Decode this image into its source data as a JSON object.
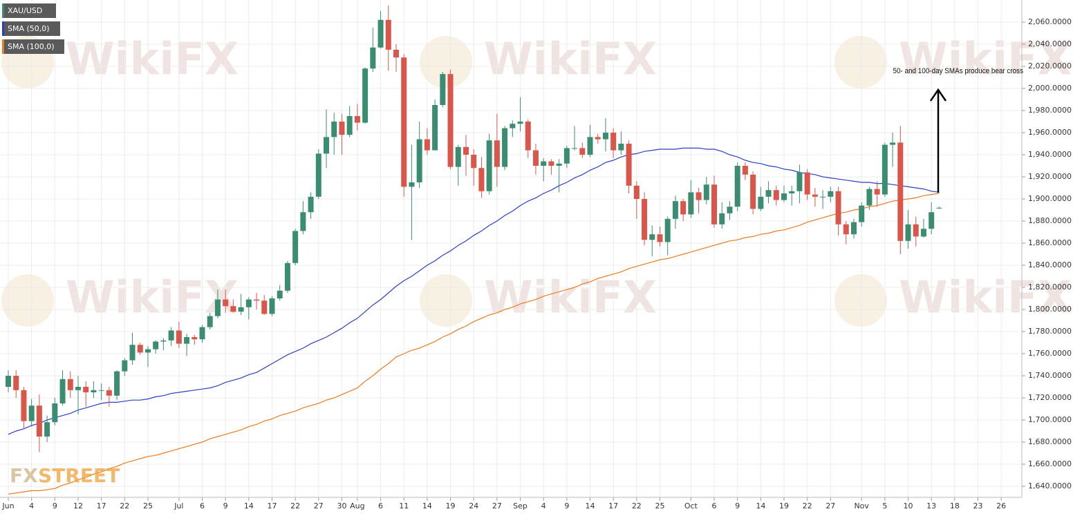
{
  "chart_data": {
    "type": "candlestick",
    "annotation": "50- and 100-day SMAs produce bear cross",
    "watermark": "WikiFX",
    "logo": {
      "fx": "FX",
      "street": "STREET"
    },
    "categories": [
      "Jun",
      null,
      null,
      "4",
      null,
      null,
      "9",
      null,
      null,
      "12",
      null,
      null,
      "17",
      null,
      null,
      "22",
      null,
      null,
      "25",
      null,
      null,
      null,
      "Jul",
      null,
      null,
      "6",
      null,
      null,
      "9",
      null,
      null,
      "14",
      null,
      null,
      "17",
      null,
      null,
      "22",
      null,
      null,
      "27",
      null,
      null,
      "30",
      null,
      "Aug",
      null,
      null,
      "6",
      null,
      null,
      "11",
      null,
      null,
      "14",
      null,
      null,
      "19",
      null,
      null,
      "24",
      null,
      null,
      "27",
      null,
      null,
      "Sep",
      null,
      null,
      "4",
      null,
      null,
      "9",
      null,
      null,
      "14",
      null,
      null,
      "17",
      null,
      null,
      "22",
      null,
      null,
      "25",
      null,
      null,
      null,
      "Oct",
      null,
      null,
      "6",
      null,
      null,
      "9",
      null,
      null,
      "14",
      null,
      null,
      "19",
      null,
      null,
      "22",
      null,
      null,
      "27",
      null,
      null,
      null,
      "Nov",
      null,
      null,
      "5",
      null,
      null,
      "10",
      null,
      null,
      "13",
      null,
      null,
      "18",
      null,
      null,
      "23",
      null,
      null,
      "26",
      null
    ],
    "ylim": [
      1630,
      2080
    ],
    "yticks": [
      {
        "value": 1640,
        "label": "1,640.0000"
      },
      {
        "value": 1660,
        "label": "1,660.0000"
      },
      {
        "value": 1680,
        "label": "1,680.0000"
      },
      {
        "value": 1700,
        "label": "1,700.0000"
      },
      {
        "value": 1720,
        "label": "1,720.0000"
      },
      {
        "value": 1740,
        "label": "1,740.0000"
      },
      {
        "value": 1760,
        "label": "1,760.0000"
      },
      {
        "value": 1780,
        "label": "1,780.0000"
      },
      {
        "value": 1800,
        "label": "1,800.0000"
      },
      {
        "value": 1820,
        "label": "1,820.0000"
      },
      {
        "value": 1840,
        "label": "1,840.0000"
      },
      {
        "value": 1860,
        "label": "1,860.0000"
      },
      {
        "value": 1880,
        "label": "1,880.0000"
      },
      {
        "value": 1900,
        "label": "1,900.0000"
      },
      {
        "value": 1920,
        "label": "1,920.0000"
      },
      {
        "value": 1940,
        "label": "1,940.0000"
      },
      {
        "value": 1960,
        "label": "1,960.0000"
      },
      {
        "value": 1980,
        "label": "1,980.0000"
      },
      {
        "value": 2000,
        "label": "2,000.0000"
      },
      {
        "value": 2020,
        "label": "2,020.0000"
      },
      {
        "value": 2040,
        "label": "2,040.0000"
      },
      {
        "value": 2060,
        "label": "2,060.0000"
      }
    ],
    "grid": true,
    "legend": "top-left",
    "series": [
      {
        "name": "XAU/USD",
        "type": "candlestick",
        "color": "#3b8d72",
        "up_color": "#3b8d72",
        "down_color": "#d9574a",
        "open": [
          1730,
          1740,
          1727,
          1699,
          1713,
          1685,
          1698,
          1715,
          1737,
          1727,
          1730,
          1725,
          1727,
          1727,
          1722,
          1744,
          1754,
          1768,
          1761,
          1764,
          1771,
          1772,
          1781,
          1769,
          1775,
          1773,
          1784,
          1794,
          1809,
          1803,
          1798,
          1802,
          1809,
          1808,
          1796,
          1810,
          1817,
          1842,
          1871,
          1888,
          1902,
          1941,
          1956,
          1970,
          1958,
          1975,
          1969,
          2018,
          2037,
          2062,
          2035,
          2028,
          1911,
          1915,
          1954,
          1944,
          1985,
          2013,
          1929,
          1947,
          1940,
          1928,
          1907,
          1953,
          1929,
          1964,
          1968,
          1970,
          1944,
          1930,
          1934,
          1930,
          1932,
          1946,
          1946,
          1940,
          1956,
          1954,
          1960,
          1944,
          1950,
          1912,
          1900,
          1863,
          1868,
          1861,
          1882,
          1898,
          1886,
          1906,
          1899,
          1913,
          1877,
          1887,
          1893,
          1930,
          1922,
          1891,
          1902,
          1908,
          1899,
          1905,
          1907,
          1924,
          1904,
          1902,
          1902,
          1907,
          1877,
          1868,
          1879,
          1894,
          1909,
          1904,
          1949,
          1951,
          1862,
          1877,
          1866,
          1873,
          1892,
          null,
          null,
          null,
          null,
          null,
          null,
          null,
          null,
          null
        ],
        "high": [
          1745,
          1745,
          1730,
          1719,
          1723,
          1704,
          1720,
          1745,
          1744,
          1740,
          1735,
          1735,
          1733,
          1730,
          1745,
          1756,
          1779,
          1770,
          1767,
          1772,
          1774,
          1784,
          1789,
          1778,
          1777,
          1786,
          1797,
          1818,
          1818,
          1809,
          1814,
          1811,
          1815,
          1813,
          1812,
          1822,
          1844,
          1873,
          1898,
          1906,
          1945,
          1981,
          1978,
          1977,
          1984,
          1986,
          2019,
          2055,
          2070,
          2075,
          2040,
          2031,
          1949,
          1970,
          1964,
          1990,
          2015,
          2017,
          1949,
          1958,
          1945,
          1938,
          1959,
          1977,
          1966,
          1971,
          1992,
          1972,
          1950,
          1937,
          1936,
          1936,
          1948,
          1966,
          1951,
          1967,
          1959,
          1973,
          1964,
          1961,
          1953,
          1916,
          1906,
          1876,
          1875,
          1884,
          1903,
          1900,
          1917,
          1910,
          1920,
          1921,
          1897,
          1898,
          1933,
          1933,
          1925,
          1911,
          1916,
          1912,
          1912,
          1912,
          1931,
          1927,
          1910,
          1908,
          1911,
          1911,
          1880,
          1882,
          1897,
          1911,
          1916,
          1951,
          1960,
          1966,
          1890,
          1884,
          1882,
          1897,
          1893,
          null,
          null,
          null,
          null,
          null,
          null,
          null,
          null,
          null
        ],
        "low": [
          1725,
          1720,
          1692,
          1694,
          1671,
          1680,
          1695,
          1713,
          1720,
          1705,
          1712,
          1720,
          1718,
          1712,
          1718,
          1740,
          1750,
          1759,
          1748,
          1760,
          1763,
          1767,
          1765,
          1758,
          1768,
          1770,
          1782,
          1792,
          1797,
          1797,
          1795,
          1791,
          1800,
          1795,
          1794,
          1808,
          1815,
          1840,
          1868,
          1882,
          1900,
          1928,
          1940,
          1940,
          1956,
          1962,
          1968,
          2015,
          2036,
          2016,
          2015,
          1902,
          1863,
          1910,
          1940,
          1944,
          1983,
          1927,
          1912,
          1921,
          1912,
          1901,
          1904,
          1911,
          1926,
          1956,
          1961,
          1937,
          1922,
          1916,
          1922,
          1906,
          1928,
          1944,
          1937,
          1938,
          1950,
          1943,
          1937,
          1940,
          1905,
          1882,
          1858,
          1848,
          1857,
          1849,
          1873,
          1880,
          1883,
          1887,
          1895,
          1874,
          1873,
          1881,
          1889,
          1917,
          1886,
          1889,
          1896,
          1894,
          1897,
          1894,
          1896,
          1899,
          1893,
          1891,
          1897,
          1867,
          1859,
          1864,
          1875,
          1890,
          1893,
          1902,
          1929,
          1850,
          1855,
          1857,
          1865,
          1868,
          1891,
          null,
          null,
          null,
          null,
          null,
          null,
          null,
          null,
          null
        ],
        "close": [
          1740,
          1727,
          1699,
          1713,
          1685,
          1698,
          1715,
          1737,
          1727,
          1730,
          1725,
          1727,
          1727,
          1722,
          1744,
          1754,
          1768,
          1761,
          1764,
          1771,
          1772,
          1781,
          1769,
          1775,
          1773,
          1784,
          1794,
          1809,
          1803,
          1798,
          1802,
          1809,
          1808,
          1796,
          1810,
          1817,
          1842,
          1871,
          1888,
          1902,
          1941,
          1956,
          1970,
          1958,
          1975,
          1969,
          2018,
          2037,
          2062,
          2035,
          2028,
          1911,
          1915,
          1954,
          1944,
          1985,
          2013,
          1929,
          1947,
          1940,
          1928,
          1907,
          1953,
          1929,
          1964,
          1968,
          1970,
          1944,
          1930,
          1934,
          1930,
          1932,
          1946,
          1946,
          1940,
          1956,
          1954,
          1960,
          1944,
          1950,
          1912,
          1900,
          1863,
          1868,
          1861,
          1882,
          1898,
          1886,
          1906,
          1899,
          1913,
          1877,
          1887,
          1893,
          1930,
          1922,
          1891,
          1902,
          1908,
          1899,
          1905,
          1907,
          1924,
          1904,
          1902,
          1902,
          1907,
          1877,
          1868,
          1879,
          1894,
          1909,
          1904,
          1949,
          1951,
          1862,
          1877,
          1866,
          1873,
          1888,
          1892,
          null,
          null,
          null,
          null,
          null,
          null,
          null,
          null,
          null
        ]
      },
      {
        "name": "SMA (50,0)",
        "type": "line",
        "color": "#2a3fc9",
        "values": [
          1687,
          1690,
          1692,
          1695,
          1697,
          1700,
          1702,
          1704,
          1706,
          1709,
          1711,
          1713,
          1715,
          1716,
          1716,
          1717,
          1718,
          1718,
          1719,
          1721,
          1722,
          1724,
          1725,
          1726,
          1727,
          1728,
          1729,
          1731,
          1734,
          1736,
          1738,
          1741,
          1743,
          1747,
          1751,
          1755,
          1759,
          1762,
          1765,
          1769,
          1772,
          1775,
          1779,
          1783,
          1788,
          1792,
          1798,
          1804,
          1809,
          1815,
          1821,
          1826,
          1830,
          1835,
          1840,
          1844,
          1849,
          1853,
          1858,
          1862,
          1867,
          1871,
          1876,
          1880,
          1885,
          1889,
          1894,
          1898,
          1901,
          1905,
          1908,
          1912,
          1915,
          1919,
          1922,
          1926,
          1929,
          1933,
          1935,
          1938,
          1940,
          1941,
          1943,
          1944,
          1945,
          1945,
          1945,
          1946,
          1946,
          1946,
          1945,
          1945,
          1943,
          1940,
          1938,
          1935,
          1933,
          1932,
          1930,
          1929,
          1927,
          1926,
          1924,
          1923,
          1922,
          1920,
          1919,
          1918,
          1917,
          1916,
          1915,
          1915,
          1914,
          1914,
          1913,
          1912,
          1911,
          1910,
          1909,
          1907,
          1906,
          null,
          null,
          null,
          null,
          null,
          null,
          null,
          null,
          null
        ]
      },
      {
        "name": "SMA (100,0)",
        "type": "line",
        "color": "#f07a1a",
        "values": [
          1633,
          1634,
          1635,
          1636,
          1636,
          1637,
          1638,
          1641,
          1643,
          1646,
          1648,
          1651,
          1653,
          1656,
          1658,
          1661,
          1663,
          1665,
          1667,
          1668,
          1670,
          1672,
          1674,
          1676,
          1678,
          1680,
          1683,
          1685,
          1687,
          1689,
          1691,
          1694,
          1696,
          1699,
          1701,
          1704,
          1706,
          1708,
          1711,
          1713,
          1715,
          1718,
          1720,
          1723,
          1726,
          1729,
          1735,
          1740,
          1746,
          1751,
          1757,
          1760,
          1763,
          1765,
          1768,
          1771,
          1775,
          1778,
          1782,
          1785,
          1789,
          1792,
          1795,
          1797,
          1800,
          1802,
          1805,
          1807,
          1809,
          1812,
          1814,
          1816,
          1818,
          1820,
          1823,
          1825,
          1828,
          1830,
          1832,
          1834,
          1837,
          1839,
          1841,
          1843,
          1845,
          1846,
          1848,
          1850,
          1852,
          1854,
          1856,
          1858,
          1860,
          1862,
          1863,
          1865,
          1866,
          1868,
          1869,
          1871,
          1872,
          1874,
          1876,
          1879,
          1881,
          1883,
          1885,
          1887,
          1888,
          1890,
          1891,
          1893,
          1894,
          1896,
          1898,
          1899,
          1900,
          1901,
          1903,
          1904,
          1905,
          null,
          null,
          null,
          null,
          null,
          null,
          null,
          null,
          null
        ]
      }
    ]
  }
}
